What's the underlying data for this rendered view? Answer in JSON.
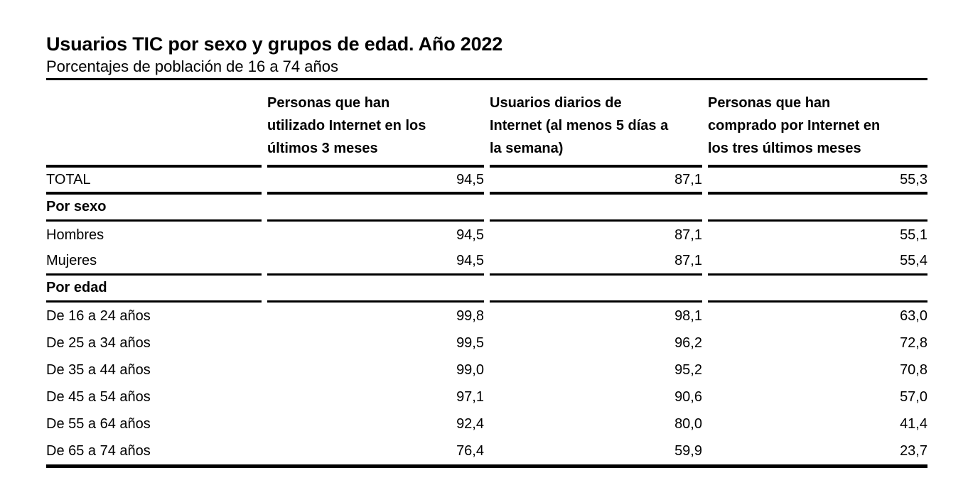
{
  "header": {
    "title": "Usuarios TIC por sexo y grupos de edad. Año 2022",
    "subtitle": "Porcentajes de población de 16 a 74 años"
  },
  "table": {
    "columns": [
      "Personas que han\nutilizado Internet en los\núltimos 3 meses",
      "Usuarios diarios de\nInternet (al menos 5 días a\nla semana)",
      "Personas que han\ncomprado por Internet en\nlos tres últimos meses"
    ],
    "rows": [
      {
        "label": "TOTAL",
        "type": "total",
        "values": [
          "94,5",
          "87,1",
          "55,3"
        ]
      },
      {
        "label": "Por sexo",
        "type": "section",
        "values": [
          "",
          "",
          ""
        ]
      },
      {
        "label": "Hombres",
        "type": "data",
        "values": [
          "94,5",
          "87,1",
          "55,1"
        ]
      },
      {
        "label": "Mujeres",
        "type": "rule",
        "values": [
          "94,5",
          "87,1",
          "55,4"
        ]
      },
      {
        "label": "Por edad",
        "type": "section",
        "values": [
          "",
          "",
          ""
        ]
      },
      {
        "label": "De 16 a 24 años",
        "type": "data",
        "values": [
          "99,8",
          "98,1",
          "63,0"
        ]
      },
      {
        "label": "De 25 a 34 años",
        "type": "data",
        "values": [
          "99,5",
          "96,2",
          "72,8"
        ]
      },
      {
        "label": "De 35 a 44 años",
        "type": "data",
        "values": [
          "99,0",
          "95,2",
          "70,8"
        ]
      },
      {
        "label": "De 45 a 54 años",
        "type": "data",
        "values": [
          "97,1",
          "90,6",
          "57,0"
        ]
      },
      {
        "label": "De 55 a 64 años",
        "type": "data",
        "values": [
          "92,4",
          "80,0",
          "41,4"
        ]
      },
      {
        "label": "De 65 a 74 años",
        "type": "data",
        "values": [
          "76,4",
          "59,9",
          "23,7"
        ]
      }
    ]
  },
  "chart_data": {
    "type": "table",
    "title": "Usuarios TIC por sexo y grupos de edad. Año 2022",
    "subtitle": "Porcentajes de población de 16 a 74 años",
    "unit": "percent",
    "columns": [
      "Personas que han utilizado Internet en los últimos 3 meses",
      "Usuarios diarios de Internet (al menos 5 días a la semana)",
      "Personas que han comprado por Internet en los tres últimos meses"
    ],
    "groups": [
      {
        "group": "TOTAL",
        "rows": [
          {
            "label": "TOTAL",
            "values": [
              94.5,
              87.1,
              55.3
            ]
          }
        ]
      },
      {
        "group": "Por sexo",
        "rows": [
          {
            "label": "Hombres",
            "values": [
              94.5,
              87.1,
              55.1
            ]
          },
          {
            "label": "Mujeres",
            "values": [
              94.5,
              87.1,
              55.4
            ]
          }
        ]
      },
      {
        "group": "Por edad",
        "rows": [
          {
            "label": "De 16 a 24 años",
            "values": [
              99.8,
              98.1,
              63.0
            ]
          },
          {
            "label": "De 25 a 34 años",
            "values": [
              99.5,
              96.2,
              72.8
            ]
          },
          {
            "label": "De 35 a 44 años",
            "values": [
              99.0,
              95.2,
              70.8
            ]
          },
          {
            "label": "De 45 a 54 años",
            "values": [
              97.1,
              90.6,
              57.0
            ]
          },
          {
            "label": "De 55 a 64 años",
            "values": [
              92.4,
              80.0,
              41.4
            ]
          },
          {
            "label": "De 65 a 74 años",
            "values": [
              76.4,
              59.9,
              23.7
            ]
          }
        ]
      }
    ],
    "colors": {
      "text": "#000000",
      "background": "#ffffff",
      "rule": "#000000"
    }
  }
}
